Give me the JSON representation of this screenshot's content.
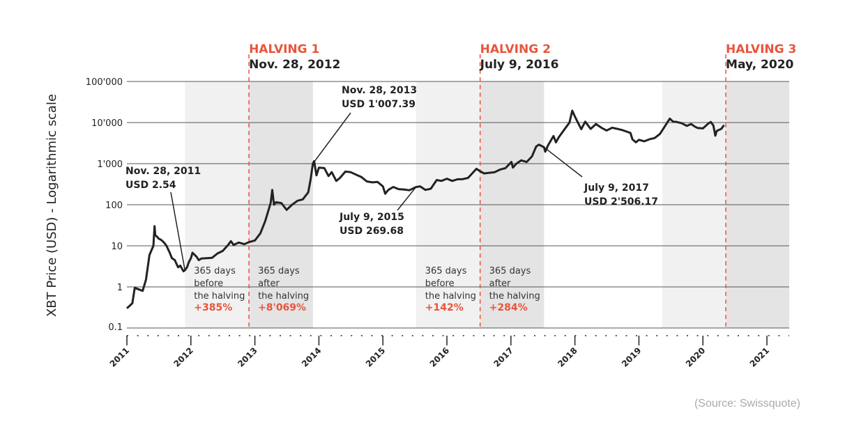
{
  "colors": {
    "accent": "#e8553c",
    "line": "#222222",
    "band_light": "#f1f1f1",
    "band_dark": "#e4e4e4",
    "grid": "#555555"
  },
  "chart_data": {
    "type": "line",
    "ylabel": "XBT Price (USD) - Logarithmic scale",
    "xlabel": "",
    "title": "",
    "y_scale": "log",
    "ylim": [
      0.1,
      100000
    ],
    "xlim": [
      "2011-01-01",
      "2021-06-01"
    ],
    "y_ticks": [
      "0.1",
      "1",
      "10",
      "100",
      "1'000",
      "10'000",
      "100'000"
    ],
    "x_ticks": [
      "2011",
      "2012",
      "2013",
      "2014",
      "2015",
      "2016",
      "2017",
      "2018",
      "2019",
      "2020",
      "2021"
    ],
    "grid": true,
    "series": [
      {
        "values": [
          [
            "2011-01-01",
            0.3
          ],
          [
            "2011-02-01",
            0.4
          ],
          [
            "2011-02-15",
            0.95
          ],
          [
            "2011-03-01",
            0.9
          ],
          [
            "2011-04-01",
            0.8
          ],
          [
            "2011-04-20",
            1.5
          ],
          [
            "2011-05-10",
            6
          ],
          [
            "2011-06-01",
            10
          ],
          [
            "2011-06-08",
            30
          ],
          [
            "2011-06-12",
            18
          ],
          [
            "2011-06-20",
            17
          ],
          [
            "2011-07-01",
            15
          ],
          [
            "2011-07-15",
            14
          ],
          [
            "2011-08-01",
            12
          ],
          [
            "2011-08-15",
            10
          ],
          [
            "2011-09-01",
            7
          ],
          [
            "2011-09-15",
            5
          ],
          [
            "2011-10-01",
            4.5
          ],
          [
            "2011-10-20",
            3
          ],
          [
            "2011-11-01",
            3.3
          ],
          [
            "2011-11-20",
            2.4
          ],
          [
            "2011-11-28",
            2.54
          ],
          [
            "2011-12-10",
            3.0
          ],
          [
            "2011-12-20",
            4.0
          ],
          [
            "2012-01-01",
            5.0
          ],
          [
            "2012-01-10",
            6.8
          ],
          [
            "2012-02-01",
            5.5
          ],
          [
            "2012-02-15",
            4.5
          ],
          [
            "2012-03-01",
            4.9
          ],
          [
            "2012-04-01",
            5.0
          ],
          [
            "2012-05-01",
            5.1
          ],
          [
            "2012-06-01",
            6.5
          ],
          [
            "2012-07-01",
            7.5
          ],
          [
            "2012-08-01",
            10.5
          ],
          [
            "2012-08-17",
            13
          ],
          [
            "2012-09-01",
            10.5
          ],
          [
            "2012-10-01",
            12
          ],
          [
            "2012-11-01",
            11
          ],
          [
            "2012-11-28",
            12.3
          ],
          [
            "2013-01-01",
            13.5
          ],
          [
            "2013-02-01",
            20
          ],
          [
            "2013-03-01",
            40
          ],
          [
            "2013-04-01",
            110
          ],
          [
            "2013-04-10",
            230
          ],
          [
            "2013-04-20",
            100
          ],
          [
            "2013-05-01",
            115
          ],
          [
            "2013-06-01",
            110
          ],
          [
            "2013-07-01",
            75
          ],
          [
            "2013-08-01",
            100
          ],
          [
            "2013-09-01",
            125
          ],
          [
            "2013-10-01",
            135
          ],
          [
            "2013-11-01",
            200
          ],
          [
            "2013-11-15",
            420
          ],
          [
            "2013-11-28",
            1007.39
          ],
          [
            "2013-12-05",
            1150
          ],
          [
            "2013-12-18",
            520
          ],
          [
            "2014-01-01",
            800
          ],
          [
            "2014-02-01",
            780
          ],
          [
            "2014-02-25",
            500
          ],
          [
            "2014-03-15",
            620
          ],
          [
            "2014-04-10",
            380
          ],
          [
            "2014-05-01",
            450
          ],
          [
            "2014-06-01",
            640
          ],
          [
            "2014-07-01",
            620
          ],
          [
            "2014-08-01",
            540
          ],
          [
            "2014-09-01",
            470
          ],
          [
            "2014-10-01",
            370
          ],
          [
            "2014-11-01",
            350
          ],
          [
            "2014-12-01",
            360
          ],
          [
            "2015-01-01",
            280
          ],
          [
            "2015-01-14",
            185
          ],
          [
            "2015-02-01",
            230
          ],
          [
            "2015-03-01",
            270
          ],
          [
            "2015-04-01",
            240
          ],
          [
            "2015-05-01",
            235
          ],
          [
            "2015-06-01",
            225
          ],
          [
            "2015-07-09",
            269.68
          ],
          [
            "2015-08-01",
            280
          ],
          [
            "2015-09-01",
            230
          ],
          [
            "2015-10-01",
            245
          ],
          [
            "2015-11-04",
            400
          ],
          [
            "2015-12-01",
            380
          ],
          [
            "2016-01-01",
            430
          ],
          [
            "2016-02-01",
            380
          ],
          [
            "2016-03-01",
            415
          ],
          [
            "2016-04-01",
            420
          ],
          [
            "2016-05-01",
            450
          ],
          [
            "2016-06-18",
            750
          ],
          [
            "2016-07-09",
            650
          ],
          [
            "2016-08-01",
            580
          ],
          [
            "2016-09-01",
            600
          ],
          [
            "2016-10-01",
            620
          ],
          [
            "2016-11-01",
            720
          ],
          [
            "2016-12-01",
            780
          ],
          [
            "2017-01-04",
            1100
          ],
          [
            "2017-01-12",
            800
          ],
          [
            "2017-02-01",
            1000
          ],
          [
            "2017-03-01",
            1200
          ],
          [
            "2017-04-01",
            1100
          ],
          [
            "2017-05-01",
            1500
          ],
          [
            "2017-05-25",
            2600
          ],
          [
            "2017-06-10",
            2900
          ],
          [
            "2017-07-09",
            2506.17
          ],
          [
            "2017-07-16",
            1950
          ],
          [
            "2017-08-01",
            2800
          ],
          [
            "2017-09-01",
            4700
          ],
          [
            "2017-09-15",
            3300
          ],
          [
            "2017-10-01",
            4400
          ],
          [
            "2017-11-01",
            6700
          ],
          [
            "2017-12-01",
            10000
          ],
          [
            "2017-12-17",
            19500
          ],
          [
            "2018-01-01",
            14000
          ],
          [
            "2018-02-06",
            6900
          ],
          [
            "2018-03-01",
            10500
          ],
          [
            "2018-04-01",
            7000
          ],
          [
            "2018-05-01",
            9200
          ],
          [
            "2018-06-01",
            7500
          ],
          [
            "2018-07-01",
            6400
          ],
          [
            "2018-08-01",
            7500
          ],
          [
            "2018-09-01",
            7000
          ],
          [
            "2018-10-01",
            6500
          ],
          [
            "2018-11-14",
            5600
          ],
          [
            "2018-11-25",
            3900
          ],
          [
            "2018-12-15",
            3300
          ],
          [
            "2019-01-01",
            3800
          ],
          [
            "2019-02-01",
            3500
          ],
          [
            "2019-03-01",
            3900
          ],
          [
            "2019-04-01",
            4200
          ],
          [
            "2019-05-01",
            5300
          ],
          [
            "2019-06-01",
            8500
          ],
          [
            "2019-06-26",
            12500
          ],
          [
            "2019-07-15",
            10500
          ],
          [
            "2019-08-01",
            10400
          ],
          [
            "2019-09-01",
            9700
          ],
          [
            "2019-10-01",
            8300
          ],
          [
            "2019-10-26",
            9200
          ],
          [
            "2019-11-15",
            8000
          ],
          [
            "2019-12-01",
            7400
          ],
          [
            "2020-01-01",
            7200
          ],
          [
            "2020-02-01",
            9500
          ],
          [
            "2020-02-15",
            10300
          ],
          [
            "2020-03-01",
            8500
          ],
          [
            "2020-03-12",
            4800
          ],
          [
            "2020-03-20",
            6200
          ],
          [
            "2020-04-01",
            6600
          ],
          [
            "2020-04-15",
            7000
          ],
          [
            "2020-05-01",
            8700
          ]
        ]
      }
    ],
    "shaded_periods": [
      {
        "from": "2011-11-28",
        "to": "2012-11-28",
        "shade": "light"
      },
      {
        "from": "2012-11-28",
        "to": "2013-11-28",
        "shade": "dark"
      },
      {
        "from": "2015-07-09",
        "to": "2016-07-09",
        "shade": "light"
      },
      {
        "from": "2016-07-09",
        "to": "2017-07-09",
        "shade": "dark"
      },
      {
        "from": "2019-05-15",
        "to": "2020-05-11",
        "shade": "light"
      },
      {
        "from": "2020-05-11",
        "to": "2021-06-01",
        "shade": "dark"
      }
    ],
    "halvings": [
      {
        "date": "2012-11-28",
        "title": "HALVING 1",
        "label": "Nov. 28, 2012"
      },
      {
        "date": "2016-07-09",
        "title": "HALVING 2",
        "label": "July 9, 2016"
      },
      {
        "date": "2020-05-11",
        "title": "HALVING 3",
        "label": "May, 2020"
      }
    ],
    "annotations": [
      {
        "date": "2011-11-28",
        "value": 2.54,
        "line1": "Nov. 28, 2011",
        "line2": "USD 2.54",
        "pos": "up"
      },
      {
        "date": "2013-11-28",
        "value": 1007.39,
        "line1": "Nov. 28, 2013",
        "line2": "USD 1'007.39",
        "pos": "up"
      },
      {
        "date": "2015-07-09",
        "value": 269.68,
        "line1": "July 9, 2015",
        "line2": "USD 269.68",
        "pos": "down-left"
      },
      {
        "date": "2017-07-09",
        "value": 2506.17,
        "line1": "July 9, 2017",
        "line2": "USD 2'506.17",
        "pos": "down-right"
      }
    ],
    "period_labels": [
      {
        "lines": [
          "365 days",
          "before",
          "the halving"
        ],
        "change": "+385%"
      },
      {
        "lines": [
          "365 days",
          "after",
          "the halving"
        ],
        "change": "+8'069%"
      },
      {
        "lines": [
          "365 days",
          "before",
          "the halving"
        ],
        "change": "+142%"
      },
      {
        "lines": [
          "365 days",
          "after",
          "the halving"
        ],
        "change": "+284%"
      }
    ],
    "source": "(Source: Swissquote)"
  }
}
